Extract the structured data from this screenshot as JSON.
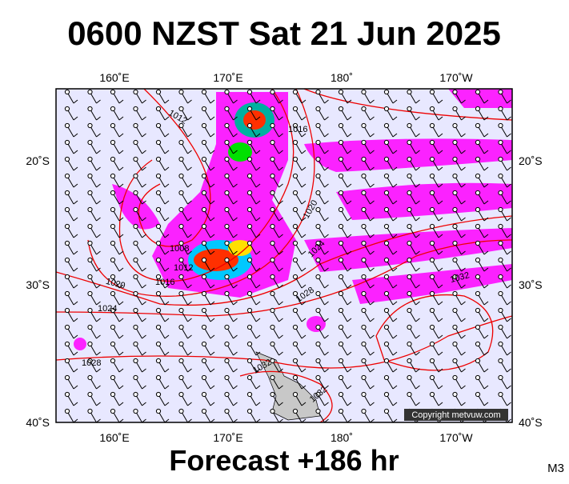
{
  "header": {
    "title": "0600 NZST Sat 21 Jun 2025"
  },
  "map": {
    "longitude_labels": [
      "160˚E",
      "170˚E",
      "180˚",
      "170˚W"
    ],
    "latitude_labels": [
      "20˚S",
      "30˚S",
      "40˚S"
    ],
    "isobar_labels": [
      "1012",
      "1016",
      "1020",
      "1024",
      "1008",
      "1012",
      "1016",
      "1020",
      "1024",
      "1028",
      "1028",
      "1032",
      "1032",
      "1032"
    ],
    "copyright": "Copyright metvuw.com"
  },
  "footer": {
    "forecast": "Forecast +186 hr",
    "model": "M3"
  }
}
